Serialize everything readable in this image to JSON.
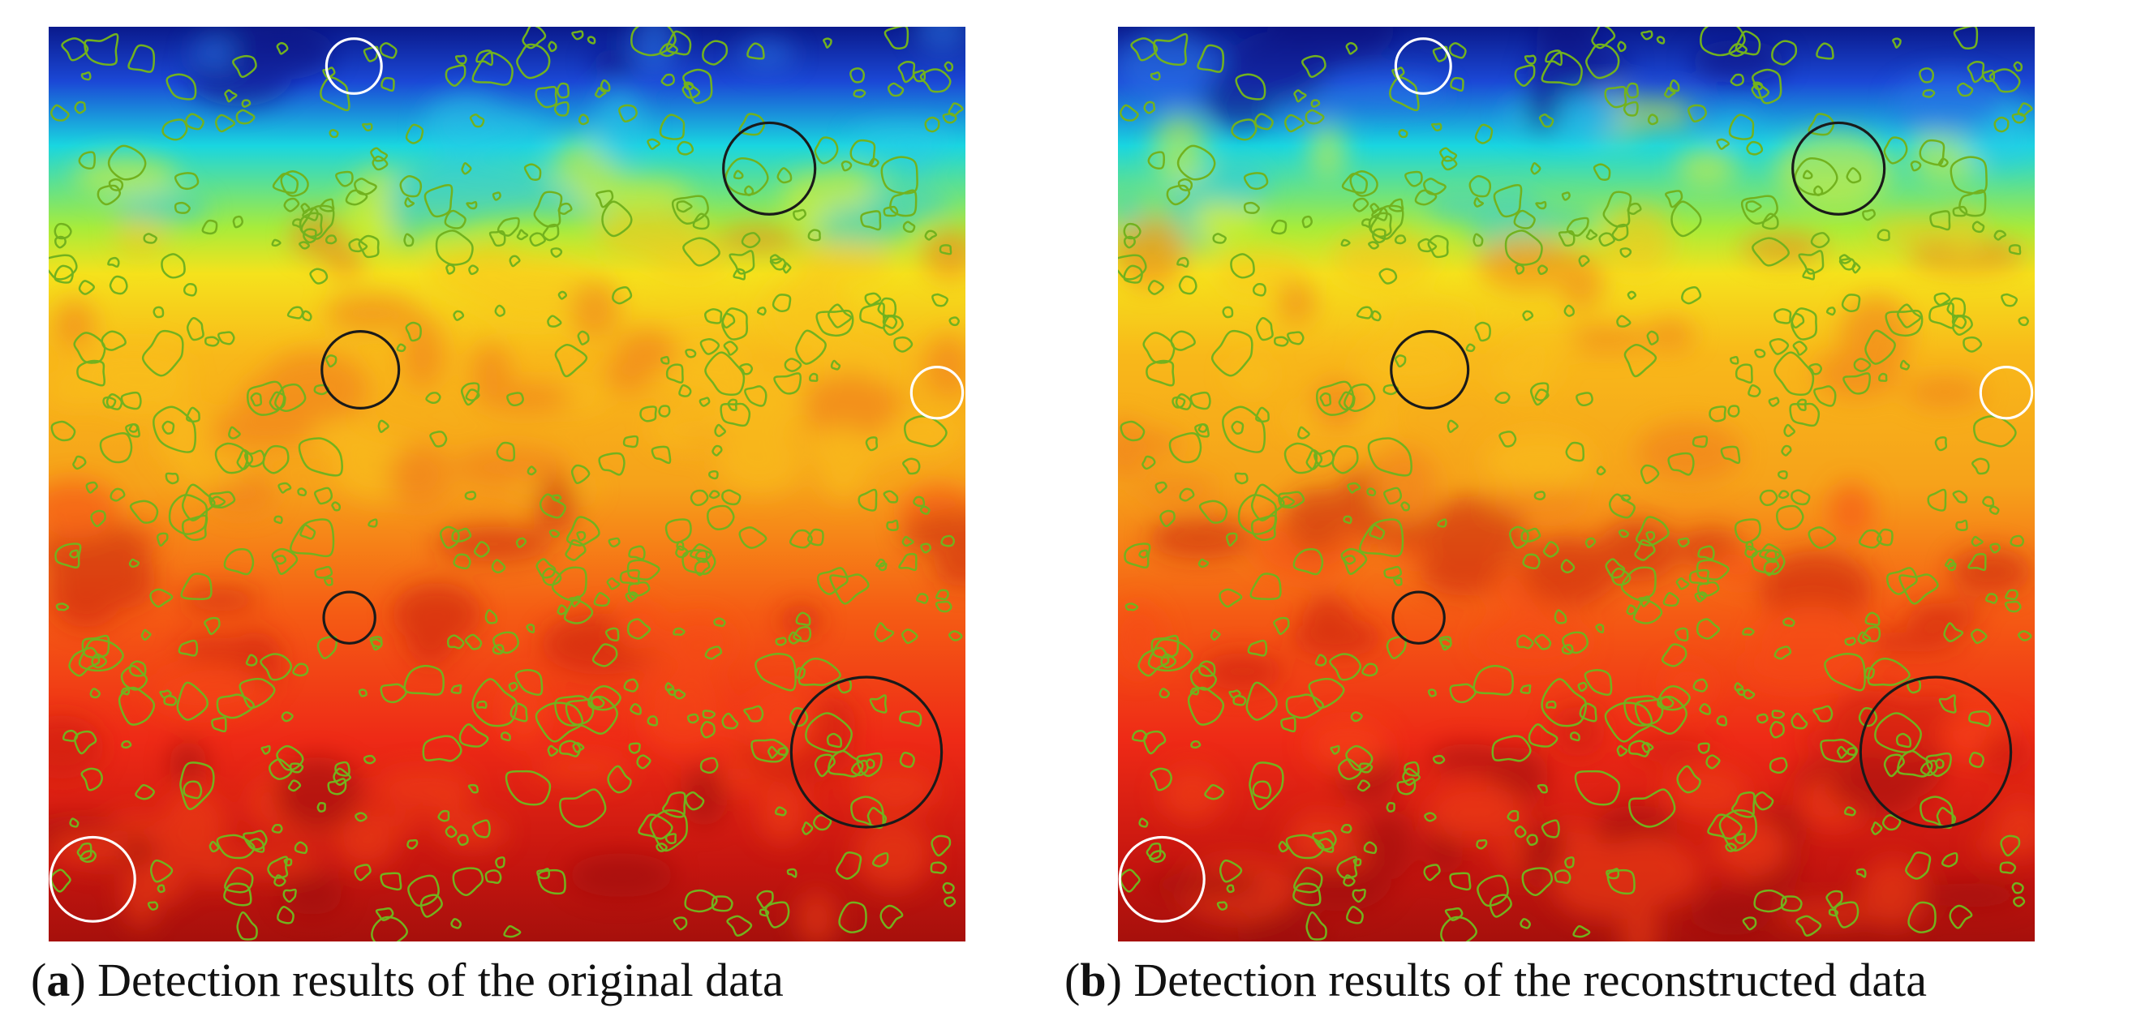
{
  "colors": {
    "deep_blue": "#0a1a8c",
    "cyan": "#19d6e0",
    "yellow": "#f5e21c",
    "orange": "#f6a21a",
    "red": "#ee2a16",
    "dark_red": "#a6100c",
    "contour_green": "#72b21e",
    "highlight_black": "#1a1a1a",
    "highlight_white": "#ffffff"
  },
  "panels": [
    {
      "id": "a",
      "letter": "a",
      "caption": "Detection results of the original data"
    },
    {
      "id": "b",
      "letter": "b",
      "caption": "Detection results of the reconstructed data"
    }
  ],
  "highlights": [
    {
      "style": "white",
      "description": "top-left-center"
    },
    {
      "style": "black",
      "description": "upper-right"
    },
    {
      "style": "black",
      "description": "middle-left"
    },
    {
      "style": "white",
      "description": "right-edge"
    },
    {
      "style": "black",
      "description": "lower-middle-small"
    },
    {
      "style": "black",
      "description": "lower-right-large"
    },
    {
      "style": "white",
      "description": "bottom-left"
    }
  ]
}
